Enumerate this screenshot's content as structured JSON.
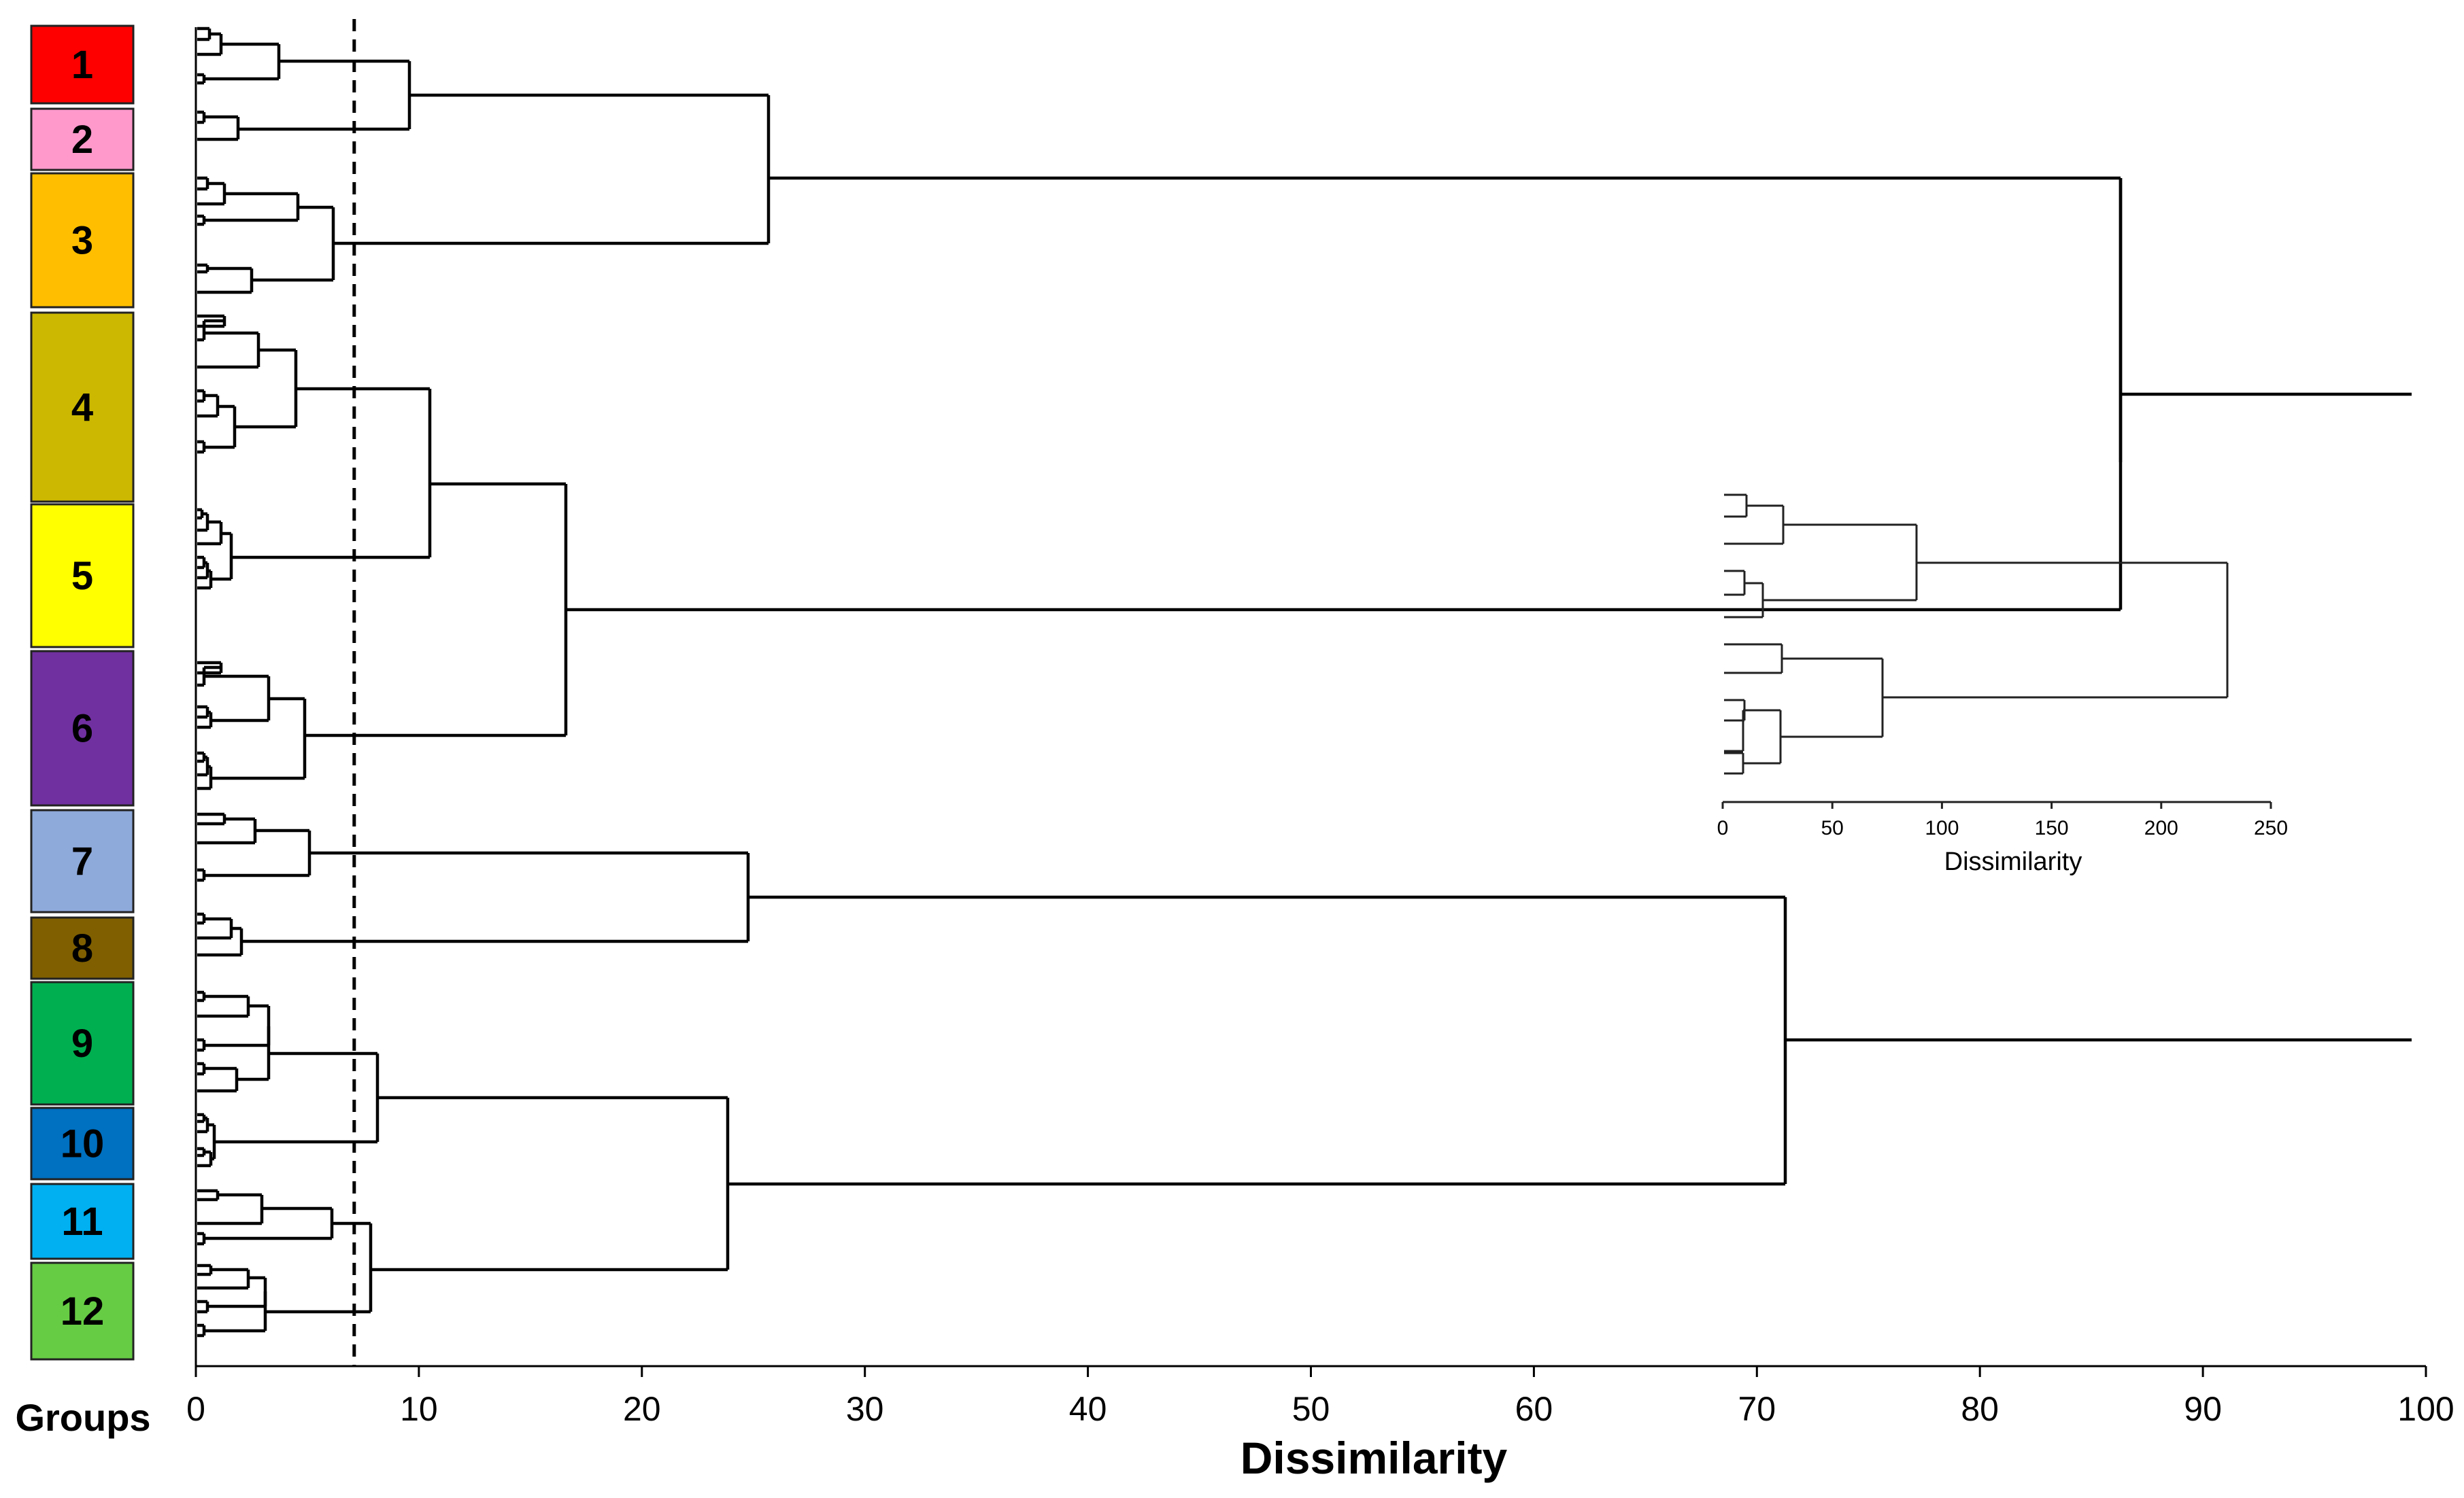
{
  "groups_title": "Groups",
  "groups": [
    {
      "label": "1",
      "color": "#ff0000"
    },
    {
      "label": "2",
      "color": "#ff99cc"
    },
    {
      "label": "3",
      "color": "#ffbf00"
    },
    {
      "label": "4",
      "color": "#ccb800"
    },
    {
      "label": "5",
      "color": "#ffff00"
    },
    {
      "label": "6",
      "color": "#7030a0"
    },
    {
      "label": "7",
      "color": "#8eaadb"
    },
    {
      "label": "8",
      "color": "#7f5f00"
    },
    {
      "label": "9",
      "color": "#00b050"
    },
    {
      "label": "10",
      "color": "#0070c0"
    },
    {
      "label": "11",
      "color": "#00b0f0"
    },
    {
      "label": "12",
      "color": "#66cc44"
    }
  ],
  "main_axis": {
    "title": "Dissimilarity",
    "min": 0,
    "max": 100,
    "ticks": [
      "0",
      "10",
      "20",
      "30",
      "40",
      "50",
      "60",
      "70",
      "80",
      "90",
      "100"
    ]
  },
  "cutoff_dissimilarity": 7.1,
  "inset": {
    "title": "Dissimilarity",
    "min": 0,
    "max": 250,
    "ticks": [
      "0",
      "50",
      "100",
      "150",
      "200",
      "250"
    ]
  }
}
